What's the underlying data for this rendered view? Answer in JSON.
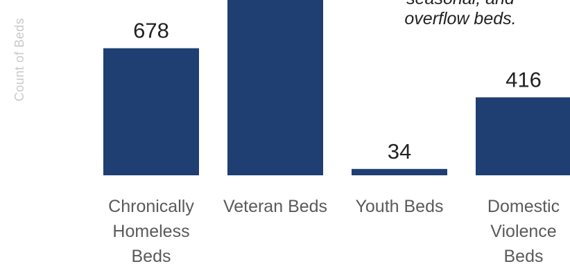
{
  "chart_data": {
    "type": "bar",
    "ylabel": "Count of Beds",
    "categories": [
      [
        "Chronically",
        "Homeless",
        "Beds"
      ],
      [
        "Veteran Beds"
      ],
      [
        "Youth Beds"
      ],
      [
        "Domestic",
        "Violence",
        "Beds"
      ]
    ],
    "values": [
      678,
      null,
      34,
      416
    ],
    "data_labels": [
      "678",
      "",
      "34",
      "416"
    ],
    "bar_color": "#1f3f73",
    "annotation": [
      "seasonal, and",
      "overflow beds."
    ],
    "ylim": [
      0,
      1150
    ]
  }
}
